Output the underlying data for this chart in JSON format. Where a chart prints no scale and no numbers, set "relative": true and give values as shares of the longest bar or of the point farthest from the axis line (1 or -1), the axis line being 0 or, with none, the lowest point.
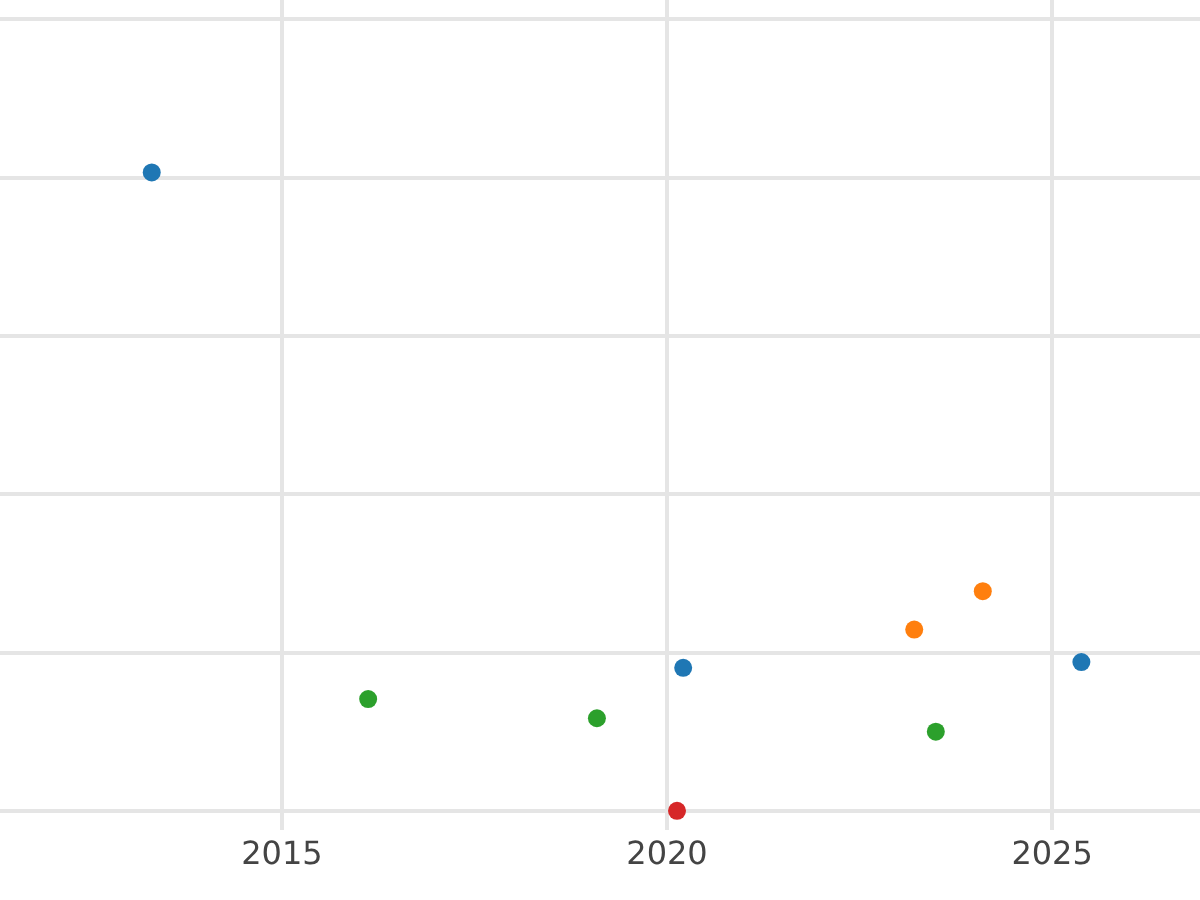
{
  "chart_data": {
    "type": "scatter",
    "relative": true,
    "xlim": [
      2011.34,
      2026.92
    ],
    "xticks": [
      2015,
      2020,
      2025
    ],
    "grid": true,
    "marker": "circle",
    "tick_labels": "x",
    "series": [
      {
        "color": "#1f77b4",
        "x": [
          2013.31,
          2020.21,
          2025.38
        ],
        "values": [
          1,
          0.224,
          0.233
        ]
      },
      {
        "color": "#ff7f0e",
        "x": [
          2023.21,
          2024.1
        ],
        "values": [
          0.284,
          0.344
        ]
      },
      {
        "color": "#2ca02c",
        "x": [
          2016.12,
          2019.09,
          2023.49
        ],
        "values": [
          0.175,
          0.145,
          0.124
        ]
      },
      {
        "color": "#d62728",
        "x": [
          2020.13
        ],
        "values": [
          0
        ]
      }
    ]
  }
}
